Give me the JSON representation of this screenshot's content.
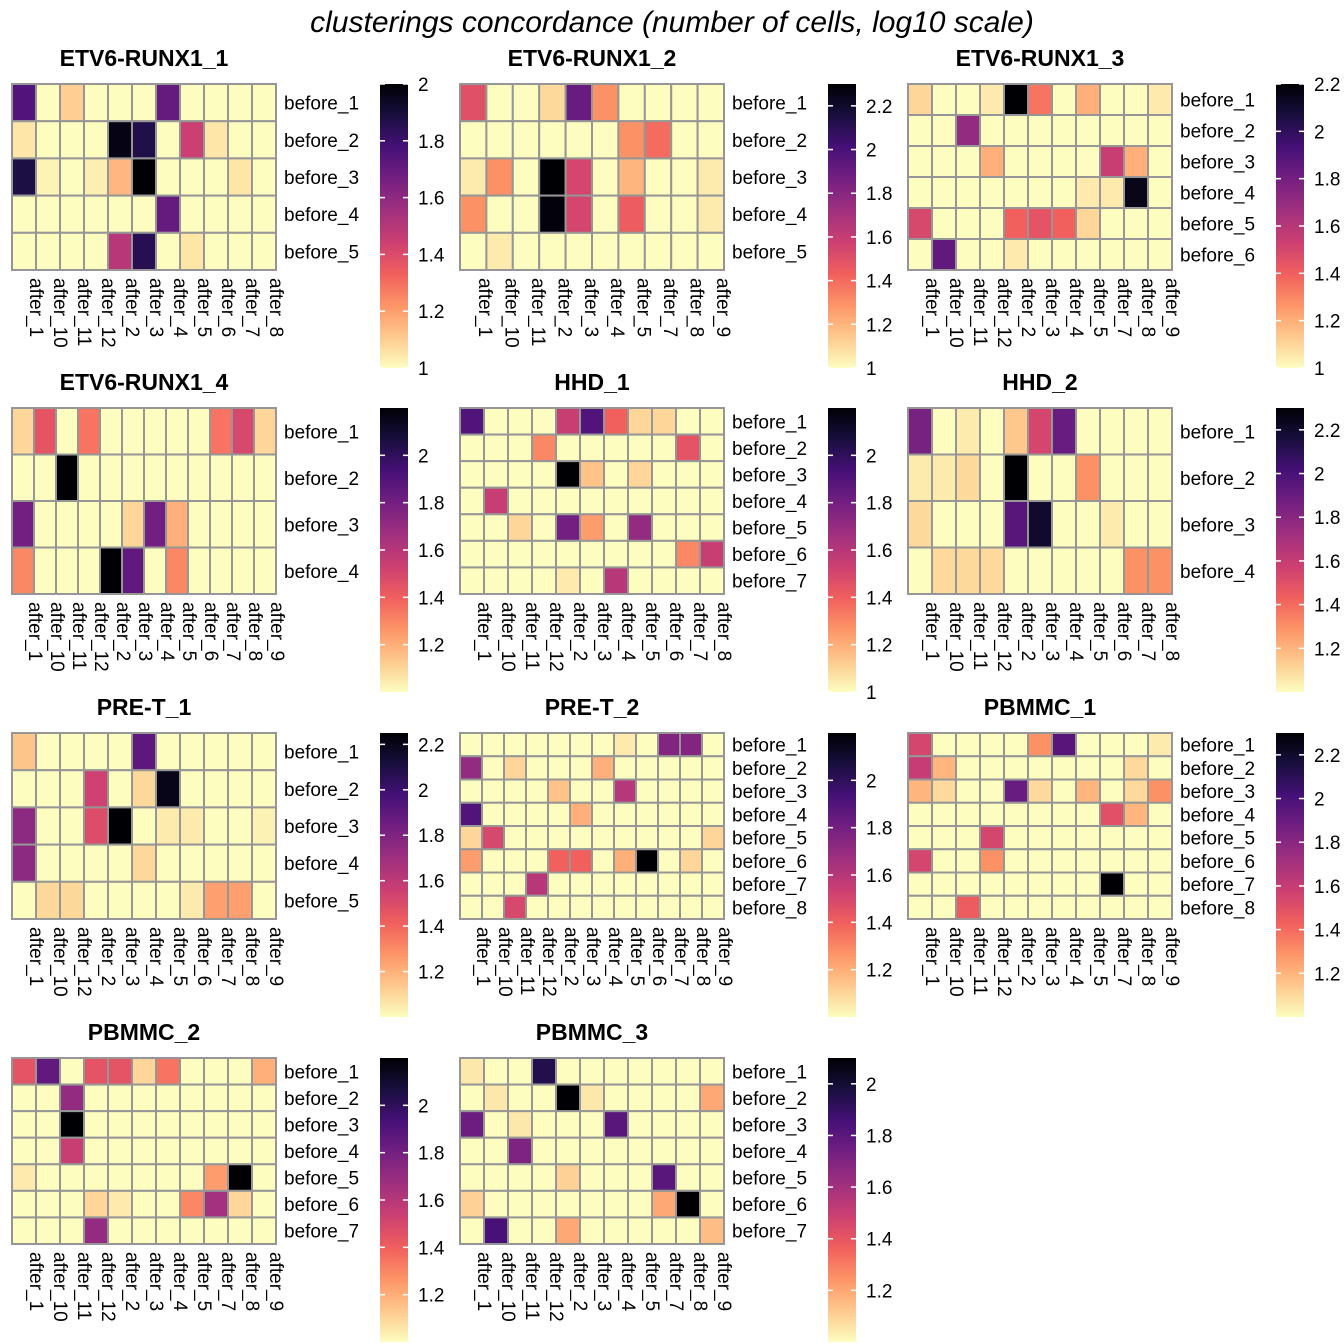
{
  "title": "clusterings concordance (number of cells, log10 scale)",
  "colors": {
    "grid": "#969696",
    "text": "#000000",
    "palette": [
      "#FCFDBF",
      "#FEC98D",
      "#FD9567",
      "#F1605D",
      "#CD4071",
      "#9E2F7F",
      "#721F81",
      "#451077",
      "#180F3E",
      "#000004"
    ]
  },
  "chart_data": [
    {
      "type": "heatmap",
      "title": "ETV6-RUNX1_1",
      "cols": [
        "after_1",
        "after_10",
        "after_11",
        "after_12",
        "after_2",
        "after_3",
        "after_4",
        "after_5",
        "after_6",
        "after_7",
        "after_8"
      ],
      "rows": [
        "before_1",
        "before_2",
        "before_3",
        "before_4",
        "before_5"
      ],
      "scale": [
        1,
        2
      ],
      "ticks": [
        1,
        1.2,
        1.4,
        1.6,
        1.8,
        2
      ],
      "values": [
        [
          1.75,
          1,
          1.1,
          1,
          1,
          1,
          1.7,
          1,
          1,
          1,
          1
        ],
        [
          1.05,
          1,
          1,
          1,
          1.97,
          1.87,
          1,
          1.45,
          1.05,
          1,
          1
        ],
        [
          1.88,
          1.02,
          1,
          1.03,
          1.15,
          2,
          1,
          1,
          1,
          1.05,
          1
        ],
        [
          1,
          1,
          1,
          1,
          1,
          1,
          1.7,
          1,
          1,
          1,
          1
        ],
        [
          1,
          1,
          1,
          1,
          1.5,
          1.85,
          1,
          1.05,
          1,
          1,
          1
        ]
      ]
    },
    {
      "type": "heatmap",
      "title": "ETV6-RUNX1_2",
      "cols": [
        "after_1",
        "after_10",
        "after_11",
        "after_2",
        "after_3",
        "after_4",
        "after_5",
        "after_7",
        "after_8",
        "after_9"
      ],
      "rows": [
        "before_1",
        "before_2",
        "before_3",
        "before_4",
        "before_5"
      ],
      "scale": [
        1,
        2.3
      ],
      "ticks": [
        1,
        1.2,
        1.4,
        1.6,
        1.8,
        2,
        2.2
      ],
      "values": [
        [
          1.5,
          1,
          1,
          1.1,
          1.9,
          1.3,
          1,
          1,
          1,
          1
        ],
        [
          1,
          1,
          1,
          1,
          1,
          1,
          1.3,
          1.4,
          1,
          1
        ],
        [
          1.05,
          1.3,
          1,
          2.3,
          1.55,
          1,
          1.2,
          1,
          1,
          1.05
        ],
        [
          1.3,
          1,
          1,
          2.28,
          1.55,
          1,
          1.45,
          1,
          1,
          1.05
        ],
        [
          1,
          1.05,
          1,
          1,
          1,
          1,
          1,
          1,
          1,
          1
        ]
      ]
    },
    {
      "type": "heatmap",
      "title": "ETV6-RUNX1_3",
      "cols": [
        "after_1",
        "after_10",
        "after_11",
        "after_12",
        "after_2",
        "after_3",
        "after_4",
        "after_5",
        "after_7",
        "after_8",
        "after_9"
      ],
      "rows": [
        "before_1",
        "before_2",
        "before_3",
        "before_4",
        "before_5",
        "before_6"
      ],
      "scale": [
        1,
        2.2
      ],
      "ticks": [
        1,
        1.2,
        1.4,
        1.6,
        1.8,
        2,
        2.2
      ],
      "values": [
        [
          1.1,
          1,
          1,
          1.05,
          2.2,
          1.35,
          1,
          1.2,
          1,
          1,
          1.05
        ],
        [
          1,
          1,
          1.7,
          1,
          1,
          1,
          1,
          1,
          1,
          1,
          1
        ],
        [
          1,
          1,
          1,
          1.2,
          1,
          1,
          1,
          1,
          1.55,
          1.2,
          1
        ],
        [
          1,
          1,
          1,
          1,
          1,
          1,
          1,
          1.05,
          1.05,
          2.15,
          1
        ],
        [
          1.5,
          1,
          1,
          1,
          1.4,
          1.45,
          1.4,
          1.1,
          1,
          1,
          1
        ],
        [
          1,
          1.85,
          1,
          1,
          1.05,
          1,
          1,
          1,
          1,
          1,
          1
        ]
      ]
    },
    {
      "type": "heatmap",
      "title": "ETV6-RUNX1_4",
      "cols": [
        "after_1",
        "after_10",
        "after_11",
        "after_12",
        "after_2",
        "after_3",
        "after_4",
        "after_5",
        "after_6",
        "after_7",
        "after_8",
        "after_9"
      ],
      "rows": [
        "before_1",
        "before_2",
        "before_3",
        "before_4"
      ],
      "scale": [
        1,
        2.2
      ],
      "ticks": [
        1.2,
        1.4,
        1.6,
        1.8,
        2
      ],
      "values": [
        [
          1.1,
          1.45,
          1,
          1.35,
          1,
          1,
          1,
          1,
          1,
          1.35,
          1.5,
          1.1
        ],
        [
          1,
          1,
          2.2,
          1,
          1,
          1,
          1,
          1,
          1,
          1,
          1,
          1
        ],
        [
          1.8,
          1,
          1,
          1,
          1,
          1.1,
          1.8,
          1.2,
          1,
          1,
          1,
          1
        ],
        [
          1.3,
          1,
          1,
          1,
          2.2,
          1.85,
          1,
          1.3,
          1,
          1,
          1,
          1
        ]
      ]
    },
    {
      "type": "heatmap",
      "title": "HHD_1",
      "cols": [
        "after_1",
        "after_10",
        "after_11",
        "after_12",
        "after_2",
        "after_3",
        "after_4",
        "after_5",
        "after_6",
        "after_7",
        "after_8"
      ],
      "rows": [
        "before_1",
        "before_2",
        "before_3",
        "before_4",
        "before_5",
        "before_6",
        "before_7"
      ],
      "scale": [
        1,
        2.2
      ],
      "ticks": [
        1,
        1.2,
        1.4,
        1.6,
        1.8,
        2
      ],
      "values": [
        [
          1.9,
          1,
          1,
          1,
          1.55,
          1.9,
          1.4,
          1.1,
          1.1,
          1,
          1
        ],
        [
          1,
          1,
          1,
          1.3,
          1,
          1,
          1,
          1,
          1,
          1.45,
          1
        ],
        [
          1,
          1,
          1,
          1,
          2.2,
          1.15,
          1,
          1.1,
          1,
          1,
          1
        ],
        [
          1,
          1.55,
          1,
          1,
          1,
          1,
          1,
          1,
          1,
          1,
          1
        ],
        [
          1,
          1,
          1.1,
          1,
          1.8,
          1.25,
          1,
          1.7,
          1,
          1,
          1
        ],
        [
          1,
          1,
          1,
          1,
          1,
          1,
          1,
          1,
          1,
          1.3,
          1.55
        ],
        [
          1,
          1,
          1,
          1,
          1.05,
          1,
          1.6,
          1,
          1,
          1,
          1
        ]
      ]
    },
    {
      "type": "heatmap",
      "title": "HHD_2",
      "cols": [
        "after_1",
        "after_10",
        "after_11",
        "after_12",
        "after_2",
        "after_3",
        "after_4",
        "after_5",
        "after_6",
        "after_7",
        "after_8"
      ],
      "rows": [
        "before_1",
        "before_2",
        "before_3",
        "before_4"
      ],
      "scale": [
        1,
        2.3
      ],
      "ticks": [
        1.2,
        1.4,
        1.6,
        1.8,
        2,
        2.2
      ],
      "values": [
        [
          1.85,
          1,
          1.05,
          1,
          1.15,
          1.55,
          1.9,
          1,
          1,
          1,
          1
        ],
        [
          1.05,
          1.05,
          1.1,
          1,
          2.3,
          1,
          1,
          1.3,
          1,
          1,
          1
        ],
        [
          1.1,
          1,
          1,
          1,
          1.95,
          2.2,
          1,
          1,
          1.05,
          1,
          1
        ],
        [
          1,
          1.1,
          1.1,
          1.1,
          1,
          1,
          1,
          1,
          1,
          1.3,
          1.3
        ]
      ]
    },
    {
      "type": "heatmap",
      "title": "PRE-T_1",
      "cols": [
        "after_1",
        "after_10",
        "after_12",
        "after_2",
        "after_3",
        "after_4",
        "after_5",
        "after_6",
        "after_7",
        "after_8",
        "after_9"
      ],
      "rows": [
        "before_1",
        "before_2",
        "before_3",
        "before_4",
        "before_5"
      ],
      "scale": [
        1,
        2.25
      ],
      "ticks": [
        1.2,
        1.4,
        1.6,
        1.8,
        2,
        2.2
      ],
      "values": [
        [
          1.15,
          1,
          1,
          1,
          1,
          1.9,
          1,
          1,
          1,
          1,
          1
        ],
        [
          1,
          1,
          1,
          1.55,
          1,
          1.1,
          2.2,
          1,
          1,
          1,
          1
        ],
        [
          1.75,
          1,
          1,
          1.5,
          2.25,
          1,
          1.05,
          1.05,
          1,
          1,
          1.03
        ],
        [
          1.75,
          1,
          1,
          1,
          1,
          1.1,
          1,
          1,
          1,
          1,
          1
        ],
        [
          1,
          1.1,
          1.1,
          1,
          1,
          1,
          1,
          1.05,
          1.25,
          1.25,
          1
        ]
      ]
    },
    {
      "type": "heatmap",
      "title": "PRE-T_2",
      "cols": [
        "after_1",
        "after_10",
        "after_11",
        "after_12",
        "after_2",
        "after_3",
        "after_4",
        "after_5",
        "after_6",
        "after_7",
        "after_8",
        "after_9"
      ],
      "rows": [
        "before_1",
        "before_2",
        "before_3",
        "before_4",
        "before_5",
        "before_6",
        "before_7",
        "before_8"
      ],
      "scale": [
        1,
        2.2
      ],
      "ticks": [
        1.2,
        1.4,
        1.6,
        1.8,
        2
      ],
      "values": [
        [
          1,
          1,
          1,
          1,
          1,
          1,
          1,
          1.05,
          1,
          1.75,
          1.75,
          1
        ],
        [
          1.7,
          1,
          1.1,
          1,
          1,
          1,
          1.2,
          1,
          1,
          1,
          1,
          1
        ],
        [
          1,
          1,
          1,
          1,
          1.15,
          1,
          1,
          1.6,
          1,
          1,
          1,
          1
        ],
        [
          1.9,
          1,
          1,
          1,
          1,
          1.2,
          1,
          1,
          1,
          1,
          1,
          1
        ],
        [
          1.1,
          1.5,
          1,
          1,
          1,
          1,
          1,
          1,
          1,
          1,
          1,
          1.1
        ],
        [
          1.25,
          1,
          1,
          1,
          1.4,
          1.4,
          1,
          1.2,
          2.2,
          1,
          1.1,
          1
        ],
        [
          1,
          1,
          1,
          1.6,
          1,
          1,
          1,
          1,
          1,
          1,
          1,
          1
        ],
        [
          1,
          1,
          1.5,
          1,
          1,
          1,
          1,
          1,
          1,
          1,
          1,
          1
        ]
      ]
    },
    {
      "type": "heatmap",
      "title": "PBMMC_1",
      "cols": [
        "after_1",
        "after_10",
        "after_11",
        "after_12",
        "after_2",
        "after_3",
        "after_4",
        "after_5",
        "after_7",
        "after_8",
        "after_9"
      ],
      "rows": [
        "before_1",
        "before_2",
        "before_3",
        "before_4",
        "before_5",
        "before_6",
        "before_7",
        "before_8"
      ],
      "scale": [
        1,
        2.3
      ],
      "ticks": [
        1.2,
        1.4,
        1.6,
        1.8,
        2,
        2.2
      ],
      "values": [
        [
          1.55,
          1,
          1,
          1,
          1,
          1.3,
          1.95,
          1,
          1,
          1,
          1.05
        ],
        [
          1.6,
          1.2,
          1,
          1,
          1,
          1,
          1,
          1,
          1,
          1.1,
          1
        ],
        [
          1.2,
          1.1,
          1,
          1,
          1.9,
          1.1,
          1,
          1.2,
          1,
          1.1,
          1.3
        ],
        [
          1,
          1,
          1,
          1,
          1,
          1,
          1,
          1,
          1.5,
          1.2,
          1
        ],
        [
          1,
          1,
          1,
          1.55,
          1,
          1,
          1,
          1,
          1,
          1,
          1
        ],
        [
          1.55,
          1,
          1,
          1.3,
          1,
          1,
          1,
          1,
          1,
          1,
          1
        ],
        [
          1,
          1,
          1,
          1,
          1,
          1,
          1,
          1,
          2.3,
          1,
          1
        ],
        [
          1,
          1,
          1.45,
          1,
          1,
          1,
          1,
          1,
          1,
          1,
          1
        ]
      ]
    },
    {
      "type": "heatmap",
      "title": "PBMMC_2",
      "cols": [
        "after_1",
        "after_10",
        "after_11",
        "after_12",
        "after_2",
        "after_3",
        "after_4",
        "after_5",
        "after_7",
        "after_8",
        "after_9"
      ],
      "rows": [
        "before_1",
        "before_2",
        "before_3",
        "before_4",
        "before_5",
        "before_6",
        "before_7"
      ],
      "scale": [
        1,
        2.2
      ],
      "ticks": [
        1.2,
        1.4,
        1.6,
        1.8,
        2
      ],
      "values": [
        [
          1.45,
          1.85,
          1,
          1.45,
          1.45,
          1.1,
          1.35,
          1,
          1,
          1,
          1.2
        ],
        [
          1,
          1,
          1.7,
          1,
          1,
          1,
          1,
          1,
          1,
          1,
          1
        ],
        [
          1,
          1,
          2.2,
          1,
          1,
          1,
          1,
          1,
          1,
          1,
          1
        ],
        [
          1,
          1,
          1.55,
          1,
          1,
          1,
          1,
          1,
          1,
          1,
          1
        ],
        [
          1.05,
          1,
          1,
          1,
          1,
          1,
          1,
          1,
          1.25,
          2.2,
          1
        ],
        [
          1,
          1,
          1,
          1.1,
          1.05,
          1,
          1,
          1.3,
          1.65,
          1.1,
          1
        ],
        [
          1,
          1,
          1,
          1.7,
          1,
          1,
          1,
          1,
          1,
          1,
          1
        ]
      ]
    },
    {
      "type": "heatmap",
      "title": "PBMMC_3",
      "cols": [
        "after_1",
        "after_10",
        "after_11",
        "after_12",
        "after_2",
        "after_3",
        "after_4",
        "after_5",
        "after_7",
        "after_8",
        "after_9"
      ],
      "rows": [
        "before_1",
        "before_2",
        "before_3",
        "before_4",
        "before_5",
        "before_6",
        "before_7"
      ],
      "scale": [
        1,
        2.1
      ],
      "ticks": [
        1.2,
        1.4,
        1.6,
        1.8,
        2
      ],
      "values": [
        [
          1.05,
          1,
          1,
          1.95,
          1,
          1,
          1,
          1,
          1,
          1,
          1
        ],
        [
          1,
          1.05,
          1,
          1,
          2.1,
          1.05,
          1,
          1,
          1,
          1,
          1.2
        ],
        [
          1.75,
          1,
          1.05,
          1,
          1,
          1,
          1.8,
          1,
          1,
          1,
          1
        ],
        [
          1,
          1,
          1.7,
          1,
          1,
          1,
          1,
          1,
          1,
          1,
          1
        ],
        [
          1,
          1,
          1,
          1,
          1.1,
          1,
          1,
          1,
          1.8,
          1,
          1
        ],
        [
          1.1,
          1,
          1,
          1,
          1,
          1,
          1,
          1,
          1.2,
          2.1,
          1
        ],
        [
          1,
          1.85,
          1,
          1,
          1.2,
          1,
          1,
          1,
          1,
          1,
          1.15
        ]
      ]
    }
  ]
}
